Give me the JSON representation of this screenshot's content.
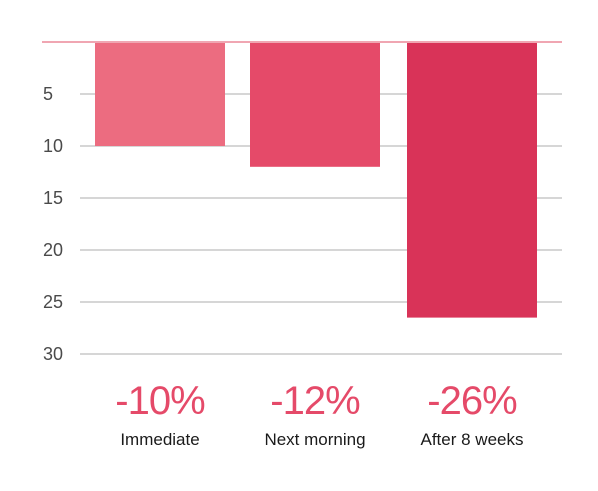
{
  "chart_data": {
    "type": "bar",
    "orientation": "vertical-downward",
    "categories": [
      "Immediate",
      "Next morning",
      "After 8 weeks"
    ],
    "values": [
      10,
      12,
      26.5
    ],
    "value_labels": [
      "-10%",
      "-12%",
      "-26%"
    ],
    "y_ticks": [
      5,
      10,
      15,
      20,
      25,
      30
    ],
    "y_tick_labels": [
      "5",
      "10",
      "15",
      "20",
      "25",
      "30"
    ],
    "ylim": [
      0,
      30
    ],
    "y_inverted": true,
    "grid": true,
    "legend": "none",
    "colors": {
      "bars": [
        "#ec6c80",
        "#e54a69",
        "#d93358"
      ],
      "value_label": "#e54a69",
      "baseline": "#f0a6b2",
      "grid": "#bdbdbd"
    }
  }
}
